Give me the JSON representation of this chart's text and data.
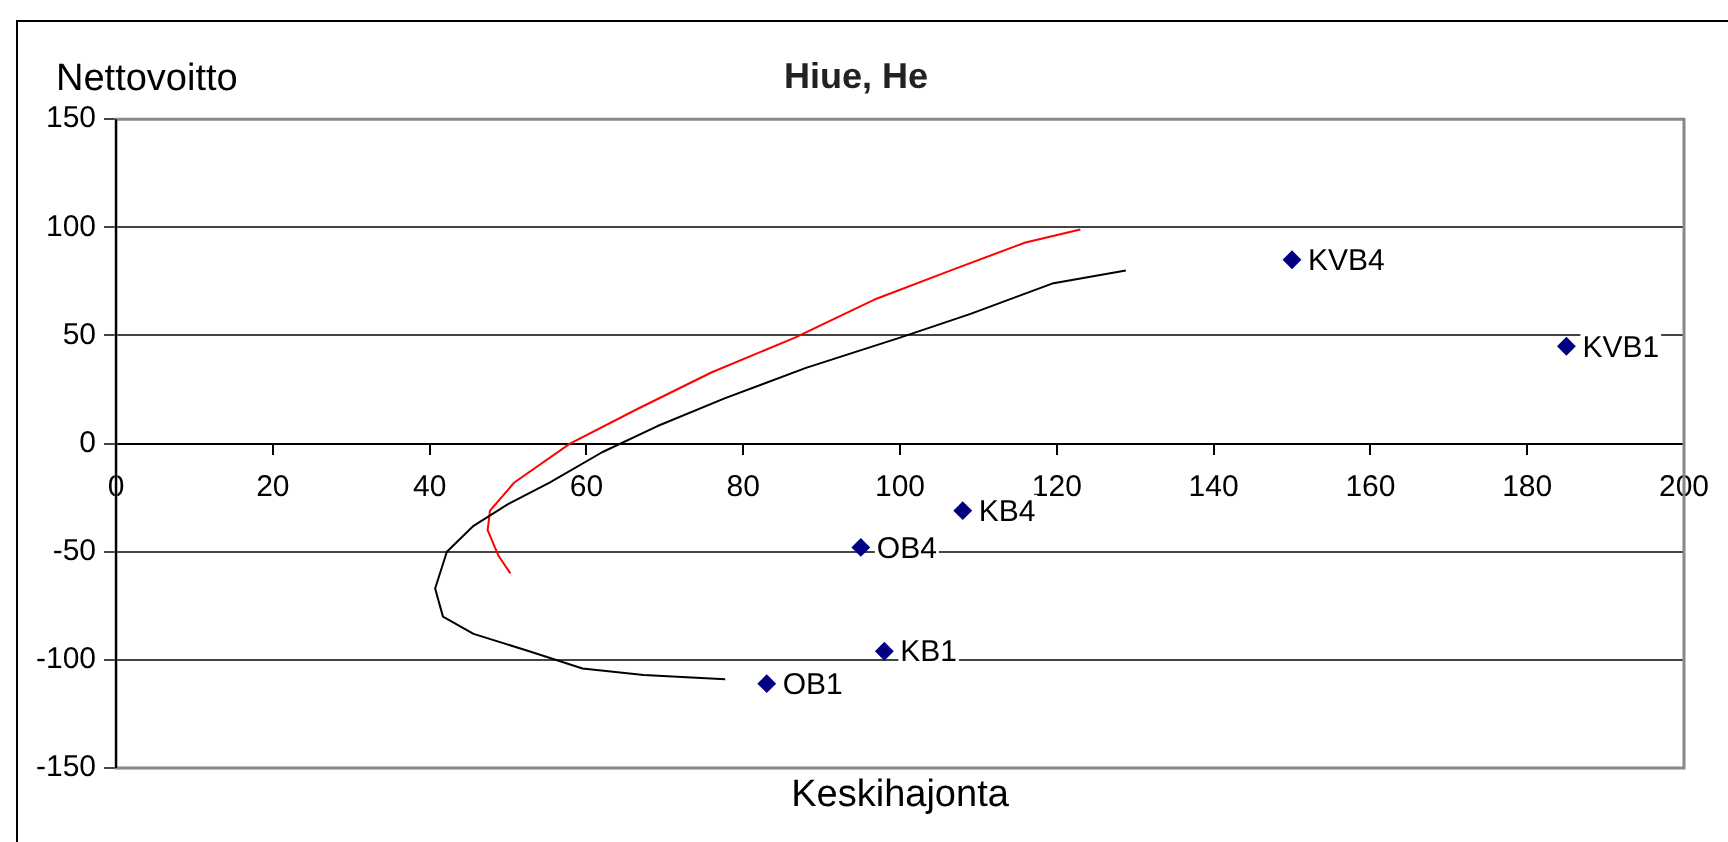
{
  "chart_data": {
    "type": "scatter",
    "title": "Hiue, He",
    "xlabel": "Keskihajonta",
    "ylabel": "Nettovoitto",
    "xlim": [
      0,
      200
    ],
    "xticks": [
      0,
      20,
      40,
      60,
      80,
      100,
      120,
      140,
      160,
      180,
      200
    ],
    "ylim": [
      -150,
      150
    ],
    "yticks": [
      -150,
      -100,
      -50,
      0,
      50,
      100,
      150
    ],
    "grid": "y",
    "legend": false,
    "series": [
      {
        "type": "line",
        "color": "#000000",
        "marker": "none",
        "x": [
          128.8,
          119.4,
          109,
          100,
          88,
          77.7,
          69,
          62,
          55.3,
          50,
          45.6,
          42.2,
          40.7,
          41.7,
          45.6,
          52.7,
          59.5,
          67.3,
          77.7
        ],
        "values": [
          80,
          74,
          60,
          49,
          35,
          21,
          8,
          -4,
          -18,
          -28,
          -38,
          -50,
          -67,
          -80,
          -88,
          -96,
          -104,
          -107,
          -109
        ]
      },
      {
        "type": "line",
        "color": "#ff0000",
        "marker": "none",
        "x": [
          123,
          116,
          106.4,
          97,
          86.6,
          76,
          66.5,
          57.9,
          50.8,
          47.7,
          47.4,
          48.8,
          50.3
        ],
        "values": [
          99,
          93,
          80,
          67,
          49,
          33,
          16,
          0,
          -18,
          -31,
          -40,
          -52,
          -60
        ]
      },
      {
        "type": "scatter",
        "color": "#000080",
        "marker": "diamond",
        "x": [
          150,
          185,
          108,
          95,
          98,
          83
        ],
        "values": [
          85,
          45,
          -31,
          -48,
          -96,
          -111
        ]
      }
    ],
    "annotations": [
      {
        "text": "KVB4",
        "x": 150,
        "y": 85
      },
      {
        "text": "KVB1",
        "x": 185,
        "y": 45
      },
      {
        "text": "KB4",
        "x": 108,
        "y": -31
      },
      {
        "text": "OB4",
        "x": 95,
        "y": -48
      },
      {
        "text": "KB1",
        "x": 98,
        "y": -96
      },
      {
        "text": "OB1",
        "x": 83,
        "y": -111
      }
    ]
  }
}
